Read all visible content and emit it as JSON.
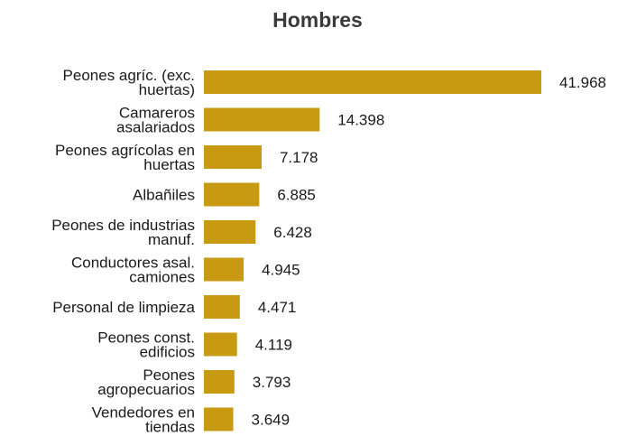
{
  "chart_data": {
    "type": "bar",
    "orientation": "horizontal",
    "title": "Hombres",
    "xlabel": "",
    "ylabel": "",
    "grid": false,
    "categories": [
      [
        "Peones agríc. (exc.",
        "huertas)"
      ],
      [
        "Camareros",
        "asalariados"
      ],
      [
        "Peones agrícolas en",
        "huertas"
      ],
      [
        "Albañiles"
      ],
      [
        "Peones de industrias",
        "manuf."
      ],
      [
        "Conductores asal.",
        "camiones"
      ],
      [
        "Personal de limpieza"
      ],
      [
        "Peones const.",
        "edificios"
      ],
      [
        "Peones",
        "agropecuarios"
      ],
      [
        "Vendedores en",
        "tiendas"
      ]
    ],
    "values": [
      41968,
      14398,
      7178,
      6885,
      6428,
      4945,
      4471,
      4119,
      3793,
      3649
    ],
    "value_labels": [
      "41.968",
      "14.398",
      "7.178",
      "6.885",
      "6.428",
      "4.945",
      "4.471",
      "4.119",
      "3.793",
      "3.649"
    ],
    "xlim": [
      0,
      41968
    ],
    "bar_color": "#c79a12"
  }
}
